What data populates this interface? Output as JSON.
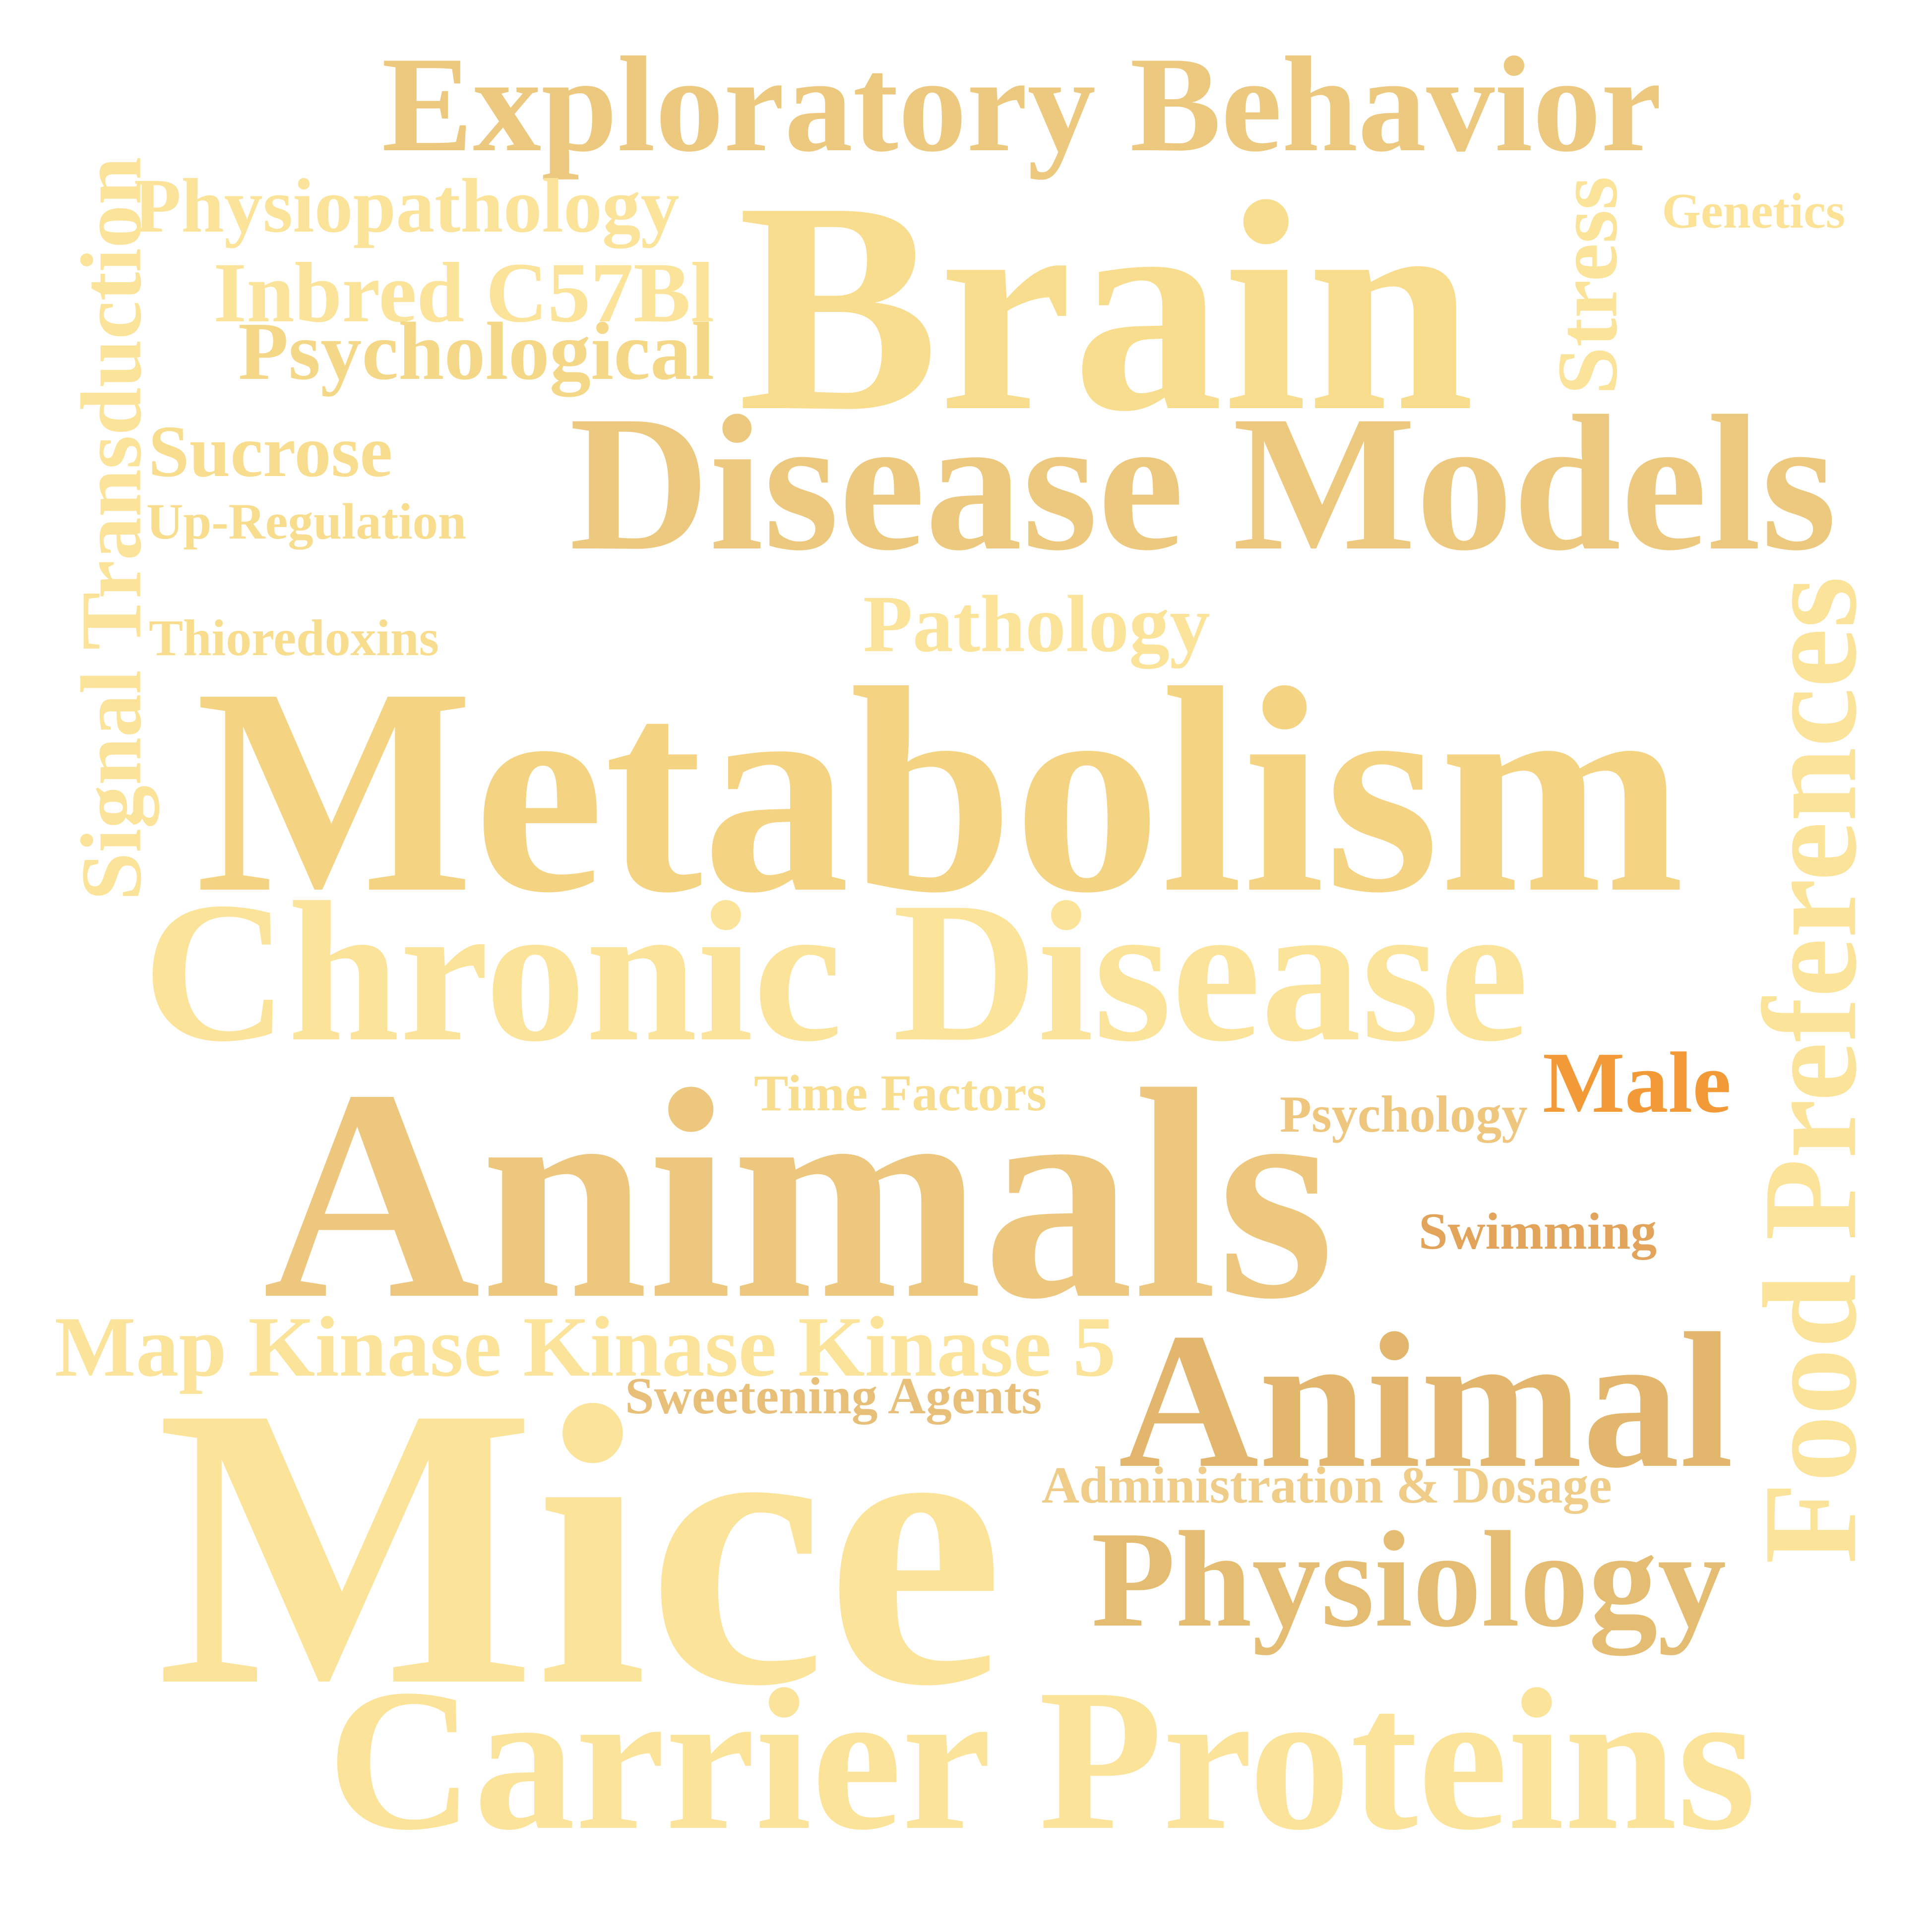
{
  "words": [
    {
      "text": "Exploratory Behavior",
      "color": "#ecc97e"
    },
    {
      "text": "Physiopathology",
      "color": "#fbe39a"
    },
    {
      "text": "Genetics",
      "color": "#fbe296"
    },
    {
      "text": "Stress",
      "color": "#fbe39a"
    },
    {
      "text": "Signal Transduction",
      "color": "#fbe39a"
    },
    {
      "text": "Brain",
      "color": "#f8dd8e"
    },
    {
      "text": "Inbred C57Bl",
      "color": "#fbe39a"
    },
    {
      "text": "Psychological",
      "color": "#f5d788"
    },
    {
      "text": "Disease Models",
      "color": "#ecc97e"
    },
    {
      "text": "Sucrose",
      "color": "#f8dd8e"
    },
    {
      "text": "Up-Regulation",
      "color": "#f8dd8e"
    },
    {
      "text": "Pathology",
      "color": "#fbe39a"
    },
    {
      "text": "Thioredoxins",
      "color": "#f8dd8e"
    },
    {
      "text": "Food Preferences",
      "color": "#fbe39a"
    },
    {
      "text": "Metabolism",
      "color": "#f4d482"
    },
    {
      "text": "Chronic Disease",
      "color": "#fbe39a"
    },
    {
      "text": "Time Factors",
      "color": "#f8dd8e"
    },
    {
      "text": "Psychology",
      "color": "#eec67e"
    },
    {
      "text": "Male",
      "color": "#f29a37"
    },
    {
      "text": "Animals",
      "color": "#edc77d"
    },
    {
      "text": "Swimming",
      "color": "#e2a45a"
    },
    {
      "text": "Map Kinase Kinase Kinase 5",
      "color": "#fbe39a"
    },
    {
      "text": "Sweetening Agents",
      "color": "#e8bf78"
    },
    {
      "text": "Animal",
      "color": "#e2b66c"
    },
    {
      "text": "Administration & Dosage",
      "color": "#efcd89"
    },
    {
      "text": "Mice",
      "color": "#fbe39a"
    },
    {
      "text": "Physiology",
      "color": "#e4bc72"
    },
    {
      "text": "Carrier Proteins",
      "color": "#fbe39a"
    }
  ]
}
